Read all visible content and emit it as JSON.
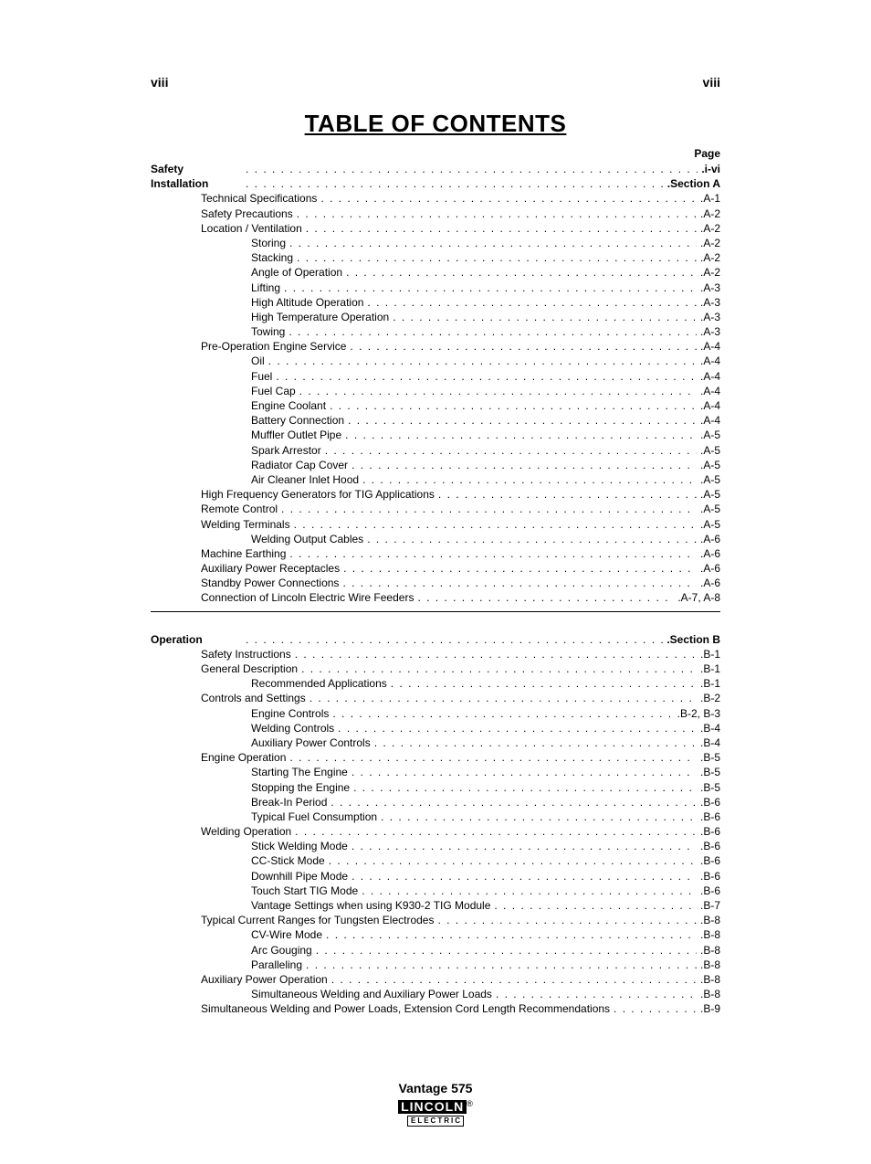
{
  "pageNumber": "viii",
  "title": "TABLE OF CONTENTS",
  "pageHeaderLabel": "Page",
  "footer": {
    "product": "Vantage 575",
    "brand": "LINCOLN",
    "brandSub": "ELECTRIC",
    "reg": "®"
  },
  "sectionA": [
    {
      "indent": 0,
      "text": "Safety",
      "page": "i-vi"
    },
    {
      "indent": 0,
      "text": "Installation",
      "page": "Section A"
    },
    {
      "indent": 1,
      "text": "Technical Specifications",
      "page": "A-1"
    },
    {
      "indent": 1,
      "text": "Safety Precautions",
      "page": "A-2"
    },
    {
      "indent": 1,
      "text": "Location / Ventilation",
      "page": "A-2"
    },
    {
      "indent": 2,
      "text": "Storing",
      "page": "A-2"
    },
    {
      "indent": 2,
      "text": "Stacking",
      "page": "A-2"
    },
    {
      "indent": 2,
      "text": "Angle of Operation",
      "page": "A-2"
    },
    {
      "indent": 2,
      "text": "Lifting",
      "page": "A-3"
    },
    {
      "indent": 2,
      "text": "High Altitude Operation",
      "page": "A-3"
    },
    {
      "indent": 2,
      "text": "High Temperature Operation",
      "page": "A-3"
    },
    {
      "indent": 2,
      "text": "Towing",
      "page": "A-3"
    },
    {
      "indent": 1,
      "text": "Pre-Operation Engine Service",
      "page": "A-4"
    },
    {
      "indent": 2,
      "text": "Oil",
      "page": "A-4"
    },
    {
      "indent": 2,
      "text": "Fuel",
      "page": "A-4"
    },
    {
      "indent": 2,
      "text": "Fuel Cap",
      "page": "A-4"
    },
    {
      "indent": 2,
      "text": "Engine Coolant",
      "page": "A-4"
    },
    {
      "indent": 2,
      "text": "Battery Connection",
      "page": "A-4"
    },
    {
      "indent": 2,
      "text": "Muffler Outlet Pipe",
      "page": "A-5"
    },
    {
      "indent": 2,
      "text": "Spark Arrestor",
      "page": "A-5"
    },
    {
      "indent": 2,
      "text": "Radiator Cap Cover",
      "page": "A-5"
    },
    {
      "indent": 2,
      "text": "Air Cleaner Inlet Hood",
      "page": "A-5"
    },
    {
      "indent": 1,
      "text": "High Frequency Generators for TIG Applications",
      "page": "A-5"
    },
    {
      "indent": 1,
      "text": "Remote Control",
      "page": "A-5"
    },
    {
      "indent": 1,
      "text": "Welding Terminals",
      "page": "A-5"
    },
    {
      "indent": 2,
      "text": "Welding Output Cables",
      "page": "A-6"
    },
    {
      "indent": 1,
      "text": "Machine Earthing",
      "page": "A-6"
    },
    {
      "indent": 1,
      "text": "Auxiliary Power Receptacles",
      "page": "A-6"
    },
    {
      "indent": 1,
      "text": "Standby Power Connections",
      "page": "A-6"
    },
    {
      "indent": 1,
      "text": "Connection of Lincoln Electric Wire Feeders",
      "page": "A-7, A-8"
    }
  ],
  "sectionB": [
    {
      "indent": 0,
      "text": "Operation",
      "page": "Section B"
    },
    {
      "indent": 1,
      "text": "Safety Instructions",
      "page": "B-1"
    },
    {
      "indent": 1,
      "text": "General Description",
      "page": "B-1"
    },
    {
      "indent": 2,
      "text": "Recommended Applications",
      "page": "B-1"
    },
    {
      "indent": 1,
      "text": "Controls and Settings",
      "page": "B-2"
    },
    {
      "indent": 2,
      "text": "Engine Controls",
      "page": "B-2, B-3"
    },
    {
      "indent": 2,
      "text": "Welding Controls",
      "page": "B-4"
    },
    {
      "indent": 2,
      "text": "Auxiliary Power Controls",
      "page": "B-4"
    },
    {
      "indent": 1,
      "text": "Engine Operation",
      "page": "B-5"
    },
    {
      "indent": 2,
      "text": "Starting The Engine",
      "page": "B-5"
    },
    {
      "indent": 2,
      "text": "Stopping the Engine",
      "page": "B-5"
    },
    {
      "indent": 2,
      "text": "Break-In Period",
      "page": "B-6"
    },
    {
      "indent": 2,
      "text": "Typical Fuel Consumption",
      "page": "B-6"
    },
    {
      "indent": 1,
      "text": "Welding Operation",
      "page": "B-6"
    },
    {
      "indent": 2,
      "text": "Stick Welding Mode",
      "page": "B-6"
    },
    {
      "indent": 2,
      "text": "CC-Stick Mode",
      "page": "B-6"
    },
    {
      "indent": 2,
      "text": "Downhill Pipe Mode",
      "page": "B-6"
    },
    {
      "indent": 2,
      "text": "Touch Start TIG Mode",
      "page": "B-6"
    },
    {
      "indent": 2,
      "text": "Vantage Settings when using K930-2 TIG Module",
      "page": "B-7"
    },
    {
      "indent": 1,
      "text": "Typical Current Ranges for Tungsten Electrodes",
      "page": "B-8"
    },
    {
      "indent": 2,
      "text": "CV-Wire Mode",
      "page": "B-8"
    },
    {
      "indent": 2,
      "text": "Arc Gouging",
      "page": "B-8"
    },
    {
      "indent": 2,
      "text": "Paralleling",
      "page": "B-8"
    },
    {
      "indent": 1,
      "text": "Auxiliary Power Operation",
      "page": "B-8"
    },
    {
      "indent": 2,
      "text": "Simultaneous Welding and Auxiliary Power Loads",
      "page": "B-8"
    },
    {
      "indent": 1,
      "text": "Simultaneous Welding and Power Loads, Extension Cord Length Recommendations",
      "page": "B-9"
    }
  ]
}
